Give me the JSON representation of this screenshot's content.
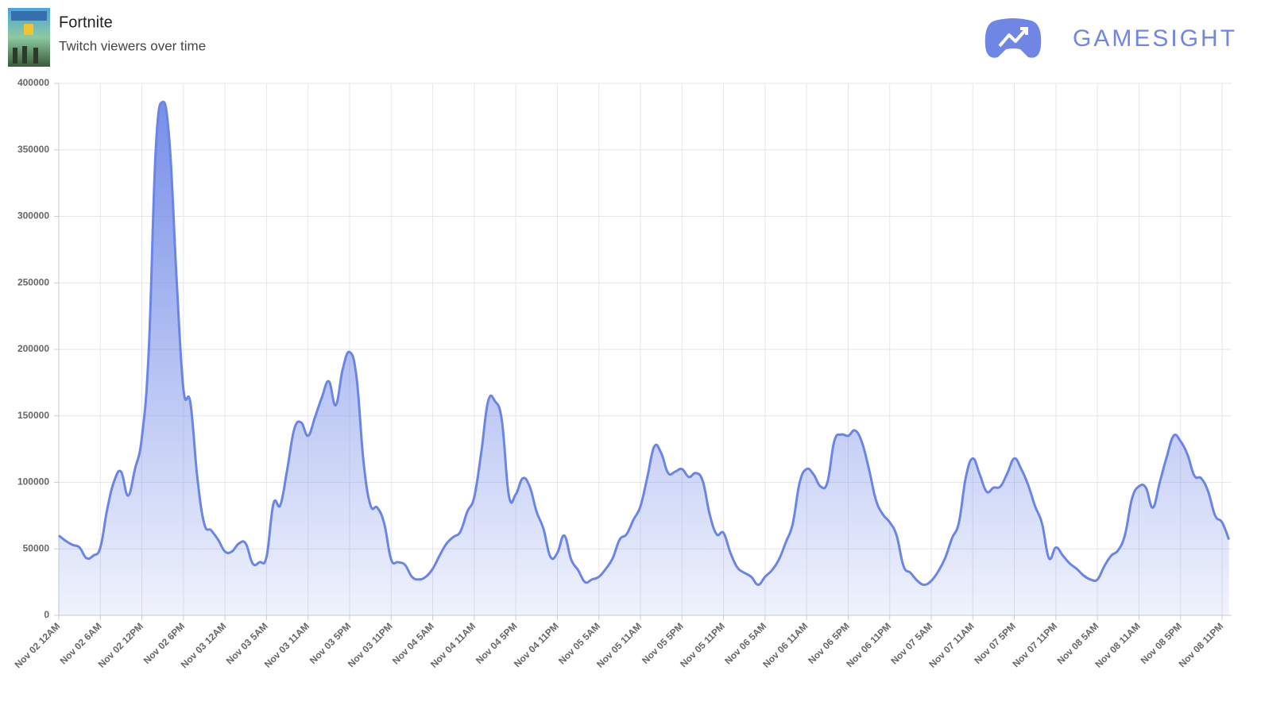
{
  "brand": "GAMESIGHT",
  "chart_data": {
    "type": "area",
    "title": "Fortnite",
    "subtitle": "Twitch viewers over time",
    "color": "#6b85e6",
    "grid": true,
    "ylim": [
      0,
      400000
    ],
    "yticks": [
      0,
      50000,
      100000,
      150000,
      200000,
      250000,
      300000,
      350000,
      400000
    ],
    "categories": [
      "Nov 02 12AM",
      null,
      null,
      null,
      null,
      null,
      "Nov 02 6AM",
      null,
      null,
      null,
      null,
      null,
      "Nov 02 12PM",
      null,
      null,
      null,
      null,
      null,
      "Nov 02 6PM",
      null,
      null,
      null,
      null,
      null,
      "Nov 03 12AM",
      null,
      null,
      null,
      null,
      null,
      "Nov 03 5AM",
      null,
      null,
      null,
      null,
      null,
      "Nov 03 11AM",
      null,
      null,
      null,
      null,
      null,
      "Nov 03 5PM",
      null,
      null,
      null,
      null,
      null,
      "Nov 03 11PM",
      null,
      null,
      null,
      null,
      null,
      "Nov 04 5AM",
      null,
      null,
      null,
      null,
      null,
      "Nov 04 11AM",
      null,
      null,
      null,
      null,
      null,
      "Nov 04 5PM",
      null,
      null,
      null,
      null,
      null,
      "Nov 04 11PM",
      null,
      null,
      null,
      null,
      null,
      "Nov 05 5AM",
      null,
      null,
      null,
      null,
      null,
      "Nov 05 11AM",
      null,
      null,
      null,
      null,
      null,
      "Nov 05 5PM",
      null,
      null,
      null,
      null,
      null,
      "Nov 05 11PM",
      null,
      null,
      null,
      null,
      null,
      "Nov 06 5AM",
      null,
      null,
      null,
      null,
      null,
      "Nov 06 11AM",
      null,
      null,
      null,
      null,
      null,
      "Nov 06 5PM",
      null,
      null,
      null,
      null,
      null,
      "Nov 06 11PM",
      null,
      null,
      null,
      null,
      null,
      "Nov 07 5AM",
      null,
      null,
      null,
      null,
      null,
      "Nov 07 11AM",
      null,
      null,
      null,
      null,
      null,
      "Nov 07 5PM",
      null,
      null,
      null,
      null,
      null,
      "Nov 07 11PM",
      null,
      null,
      null,
      null,
      null,
      "Nov 08 5AM",
      null,
      null,
      null,
      null,
      null,
      "Nov 08 11AM",
      null,
      null,
      null,
      null,
      null,
      "Nov 08 5PM",
      null,
      null,
      null,
      null,
      null,
      "Nov 08 11PM",
      null
    ],
    "values": [
      60000,
      56000,
      53000,
      51000,
      43000,
      45000,
      51000,
      80000,
      101000,
      108000,
      90000,
      110000,
      134000,
      200000,
      350000,
      386000,
      355000,
      254000,
      170000,
      160000,
      104000,
      69000,
      64000,
      57000,
      48000,
      48000,
      54000,
      54000,
      39000,
      40000,
      44000,
      84000,
      83000,
      110000,
      140000,
      145000,
      135000,
      149000,
      164000,
      176000,
      158000,
      185000,
      198000,
      179000,
      116000,
      83000,
      81000,
      69000,
      42000,
      40000,
      38000,
      29000,
      27000,
      29000,
      35000,
      45000,
      54000,
      59000,
      63000,
      78000,
      89000,
      122000,
      161000,
      161000,
      146000,
      90000,
      91000,
      103000,
      97000,
      78000,
      65000,
      44000,
      47000,
      60000,
      42000,
      34000,
      25000,
      27000,
      29000,
      35000,
      43000,
      57000,
      61000,
      72000,
      82000,
      104000,
      127000,
      122000,
      107000,
      108000,
      110000,
      104000,
      107000,
      101000,
      76000,
      61000,
      62000,
      47000,
      36000,
      32000,
      29000,
      23000,
      29000,
      34000,
      42000,
      55000,
      69000,
      100000,
      110000,
      106000,
      97000,
      100000,
      131000,
      136000,
      135000,
      139000,
      130000,
      110000,
      87000,
      76000,
      70000,
      60000,
      37000,
      32000,
      26000,
      23000,
      26000,
      33000,
      43000,
      58000,
      70000,
      104000,
      118000,
      106000,
      93000,
      96000,
      97000,
      107000,
      118000,
      110000,
      98000,
      82000,
      69000,
      43000,
      51000,
      45000,
      39000,
      35000,
      30000,
      27000,
      27000,
      37000,
      45000,
      49000,
      61000,
      88000,
      97000,
      96000,
      81000,
      100000,
      119000,
      135000,
      131000,
      121000,
      105000,
      103000,
      93000,
      75000,
      70000,
      57000
    ]
  }
}
